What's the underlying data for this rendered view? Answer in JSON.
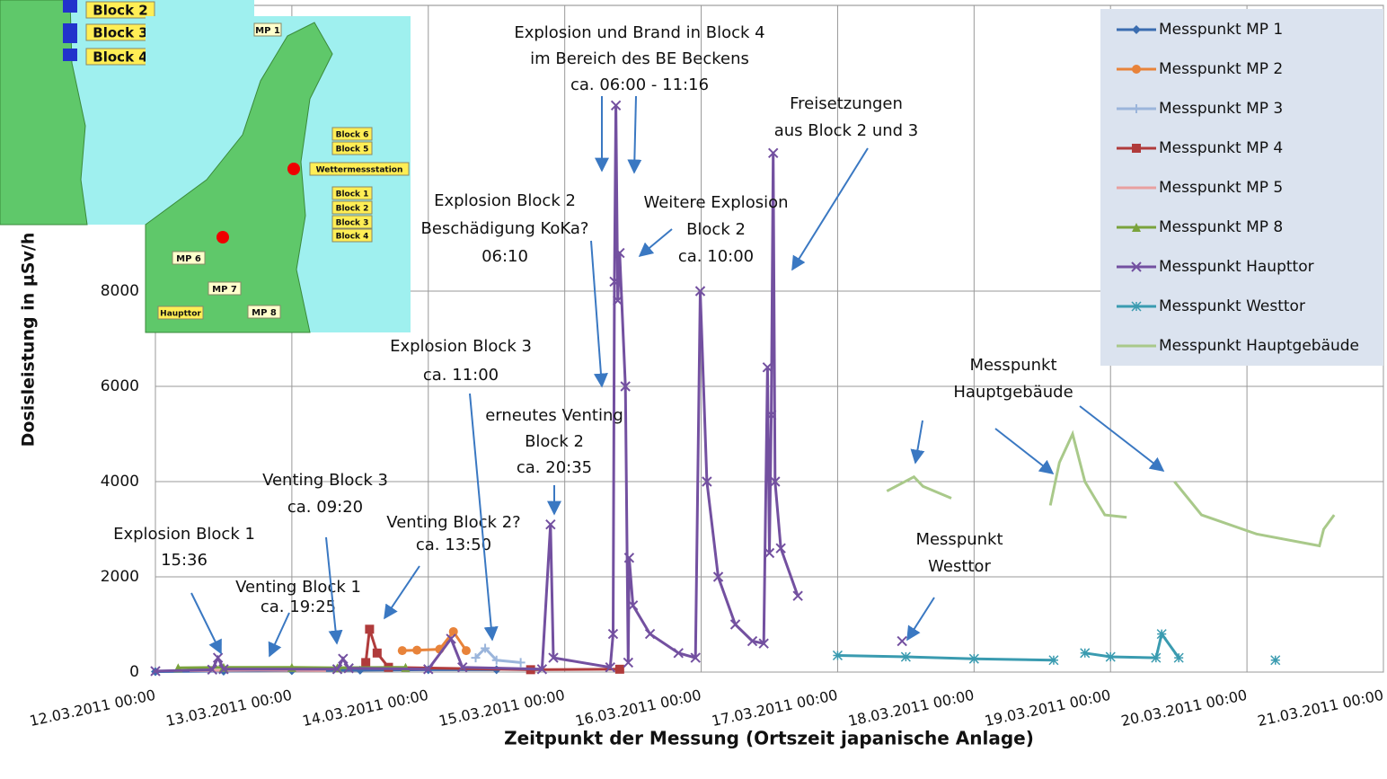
{
  "chart_data": {
    "type": "line",
    "y_label": "Dosisleistung in µSv/h",
    "x_label": "Zeitpunkt der Messung (Ortszeit japanische Anlage)",
    "xlim": [
      "12.03.2011 00:00",
      "21.03.2011 00:00"
    ],
    "xticks": [
      "12.03.2011 00:00",
      "13.03.2011 00:00",
      "14.03.2011 00:00",
      "15.03.2011 00:00",
      "16.03.2011 00:00",
      "17.03.2011 00:00",
      "18.03.2011 00:00",
      "19.03.2011 00:00",
      "20.03.2011 00:00",
      "21.03.2011 00:00"
    ],
    "ylim": [
      0,
      14000
    ],
    "yticks": [
      0,
      2000,
      4000,
      6000,
      8000
    ],
    "grid": true,
    "legend": "top-right",
    "series": [
      {
        "name": "Messpunkt MP 1",
        "color": "#3b6db0",
        "marker": "diamond",
        "x": [
          "12.03.2011 00:00",
          "12.03.2011 12:00",
          "13.03.2011 00:00",
          "13.03.2011 12:00",
          "14.03.2011 00:00",
          "14.03.2011 12:00"
        ],
        "values": [
          10,
          20,
          30,
          40,
          50,
          50
        ]
      },
      {
        "name": "Messpunkt MP 2",
        "color": "#e8833a",
        "marker": "circle",
        "x": [
          "13.03.2011 19:25",
          "13.03.2011 22:00",
          "14.03.2011 02:00",
          "14.03.2011 04:25",
          "14.03.2011 06:40"
        ],
        "values": [
          450,
          460,
          480,
          850,
          450
        ]
      },
      {
        "name": "Messpunkt MP 3",
        "color": "#9bb5db",
        "marker": "plus",
        "x": [
          "14.03.2011 08:20",
          "14.03.2011 10:00",
          "14.03.2011 12:00",
          "14.03.2011 16:15"
        ],
        "values": [
          300,
          500,
          250,
          200
        ]
      },
      {
        "name": "Messpunkt MP 4",
        "color": "#b03b3b",
        "marker": "square",
        "x": [
          "13.03.2011 13:00",
          "13.03.2011 13:40",
          "13.03.2011 15:00",
          "13.03.2011 17:00",
          "14.03.2011 18:00",
          "15.03.2011 09:40"
        ],
        "values": [
          200,
          900,
          400,
          100,
          50,
          60
        ]
      },
      {
        "name": "Messpunkt MP 5",
        "color": "#e9a0a0",
        "marker": "none",
        "x": [
          "12.03.2011 06:00",
          "12.03.2011 18:00",
          "13.03.2011 06:00"
        ],
        "values": [
          30,
          40,
          30
        ]
      },
      {
        "name": "Messpunkt MP 8",
        "color": "#7aa33c",
        "marker": "triangle",
        "x": [
          "12.03.2011 04:00",
          "12.03.2011 12:00",
          "13.03.2011 00:00",
          "13.03.2011 08:00",
          "13.03.2011 20:00"
        ],
        "values": [
          90,
          100,
          100,
          90,
          100
        ]
      },
      {
        "name": "Messpunkt Haupttor",
        "color": "#7350a0",
        "marker": "x",
        "x": [
          "12.03.2011 00:00",
          "12.03.2011 10:00",
          "12.03.2011 11:00",
          "12.03.2011 12:00",
          "13.03.2011 08:00",
          "13.03.2011 09:00",
          "13.03.2011 10:00",
          "14.03.2011 00:00",
          "14.03.2011 04:00",
          "14.03.2011 06:00",
          "14.03.2011 20:00",
          "14.03.2011 21:30",
          "14.03.2011 22:00",
          "15.03.2011 08:00",
          "15.03.2011 08:30",
          "15.03.2011 08:45",
          "15.03.2011 09:00",
          "15.03.2011 09:20",
          "15.03.2011 09:40",
          "15.03.2011 10:40",
          "15.03.2011 11:10",
          "15.03.2011 11:20",
          "15.03.2011 12:00",
          "15.03.2011 15:00",
          "15.03.2011 20:00",
          "15.03.2011 23:00",
          "15.03.2011 23:50",
          "16.03.2011 01:00",
          "16.03.2011 03:00",
          "16.03.2011 06:00",
          "16.03.2011 09:00",
          "16.03.2011 11:00",
          "16.03.2011 11:40",
          "16.03.2011 12:00",
          "16.03.2011 12:20",
          "16.03.2011 12:40",
          "16.03.2011 13:00",
          "16.03.2011 14:00",
          "16.03.2011 17:00",
          "17.03.2011 00:00",
          "17.03.2011 11:20"
        ],
        "values": [
          20,
          50,
          300,
          60,
          60,
          280,
          80,
          60,
          700,
          100,
          60,
          3100,
          300,
          100,
          800,
          8200,
          11900,
          7800,
          8800,
          6000,
          200,
          2400,
          1400,
          800,
          400,
          300,
          8000,
          4000,
          2000,
          1000,
          650,
          600,
          6400,
          2500,
          5400,
          10900,
          4000,
          2600,
          1600,
          null,
          650
        ]
      },
      {
        "name": "Messpunkt Westtor",
        "color": "#3a9bb0",
        "marker": "star",
        "x": [
          "17.03.2011 00:00",
          "17.03.2011 12:00",
          "18.03.2011 00:00",
          "18.03.2011 14:00",
          "18.03.2011 16:00",
          "18.03.2011 19:30",
          "19.03.2011 00:00",
          "19.03.2011 08:00",
          "19.03.2011 09:00",
          "19.03.2011 12:00",
          "19.03.2011 18:00",
          "20.03.2011 05:00"
        ],
        "values": [
          350,
          320,
          280,
          250,
          null,
          400,
          320,
          300,
          800,
          300,
          null,
          250
        ]
      },
      {
        "name": "Messpunkt Hauptgebäude",
        "color": "#a9c98a",
        "marker": "none",
        "x": [
          "17.03.2011 08:40",
          "17.03.2011 13:25",
          "17.03.2011 15:00",
          "17.03.2011 20:00",
          "17.03.2011 22:00",
          "18.03.2011 13:25",
          "18.03.2011 15:00",
          "18.03.2011 17:20",
          "18.03.2011 19:30",
          "18.03.2011 23:00",
          "19.03.2011 02:50",
          "19.03.2011 05:00",
          "19.03.2011 11:15",
          "19.03.2011 16:00",
          "20.03.2011 01:40",
          "20.03.2011 12:45",
          "20.03.2011 13:30",
          "20.03.2011 15:20"
        ],
        "values": [
          3800,
          4100,
          3900,
          3650,
          null,
          3500,
          4400,
          5000,
          4000,
          3300,
          3250,
          null,
          4000,
          3300,
          2900,
          2650,
          3000,
          3300
        ]
      }
    ],
    "annotations": [
      [
        "Explosion und Brand in Block 4",
        "im Bereich des BE Beckens",
        "ca. 06:00 - 11:16"
      ],
      [
        "Freisetzungen",
        "aus Block 2 und 3"
      ],
      [
        "Explosion Block 2",
        "Beschädigung KoKa?",
        "06:10"
      ],
      [
        "Weitere Explosion",
        "Block 2",
        "ca. 10:00"
      ],
      [
        "Explosion Block 3",
        "ca. 11:00"
      ],
      [
        "erneutes Venting",
        "Block 2",
        "ca. 20:35"
      ],
      [
        "Venting Block 3",
        "ca. 09:20"
      ],
      [
        "Venting Block 2?",
        "ca. 13:50"
      ],
      [
        "Explosion Block 1",
        "15:36"
      ],
      [
        "Venting Block 1",
        "ca. 19:25"
      ],
      [
        "Messpunkt",
        "Hauptgebäude"
      ],
      [
        "Messpunkt",
        "Westtor"
      ]
    ],
    "inset_labels": [
      "Block 2",
      "Block 3",
      "Block 4",
      "MP 1",
      "Block 6",
      "Block 5",
      "Wettermessstation",
      "Block 1",
      "Block 2",
      "Block 3",
      "Block 4",
      "MP 6",
      "MP 7",
      "MP 8",
      "Haupttor"
    ]
  }
}
